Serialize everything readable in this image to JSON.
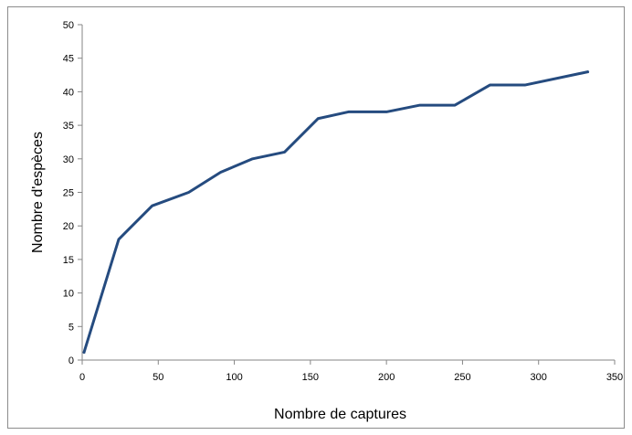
{
  "chart_data": {
    "type": "line",
    "title": "",
    "xlabel": "Nombre de captures",
    "ylabel": "Nombre d'espèces",
    "xlim": [
      0,
      350
    ],
    "ylim": [
      0,
      50
    ],
    "x_ticks": [
      0,
      50,
      100,
      150,
      200,
      250,
      300,
      350
    ],
    "y_ticks": [
      0,
      5,
      10,
      15,
      20,
      25,
      30,
      35,
      40,
      45,
      50
    ],
    "grid": false,
    "legend": "none",
    "line_color": "#254b7f",
    "series": [
      {
        "x": [
          1,
          24,
          46,
          70,
          91,
          112,
          133,
          155,
          175,
          200,
          222,
          245,
          268,
          291,
          333
        ],
        "y": [
          1,
          18,
          23,
          25,
          28,
          30,
          31,
          36,
          37,
          37,
          38,
          38,
          41,
          41,
          43
        ]
      }
    ]
  }
}
